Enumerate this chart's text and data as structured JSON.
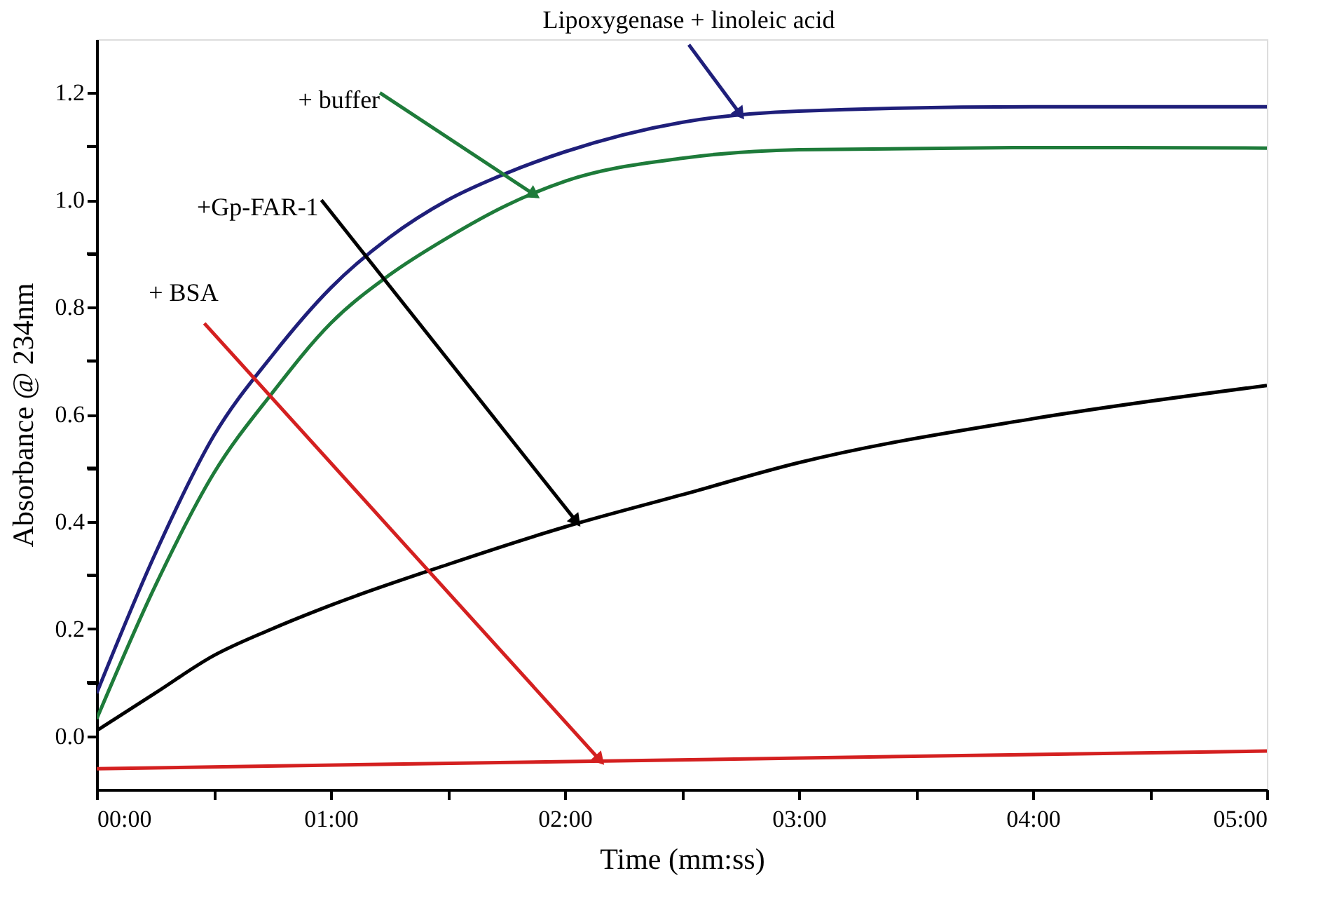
{
  "chart_data": {
    "type": "line",
    "xlabel": "Time (mm:ss)",
    "ylabel": "Absorbance @ 234nm",
    "series": [
      {
        "color": "#1f1f7a",
        "x": [
          0,
          0.25,
          0.5,
          0.75,
          1,
          1.25,
          1.5,
          1.75,
          2,
          2.5,
          3,
          4,
          5
        ],
        "values": [
          0.08,
          0.34,
          0.56,
          0.71,
          0.836,
          0.93,
          1.0,
          1.05,
          1.09,
          1.145,
          1.166,
          1.174,
          1.174
        ]
      },
      {
        "color": "#1e7b3a",
        "x": [
          0,
          0.25,
          0.5,
          0.75,
          1,
          1.25,
          1.5,
          1.75,
          2,
          2.5,
          3,
          4,
          5
        ],
        "values": [
          0.032,
          0.28,
          0.49,
          0.64,
          0.77,
          0.86,
          0.93,
          0.99,
          1.035,
          1.078,
          1.094,
          1.098,
          1.097
        ]
      },
      {
        "color": "#000000",
        "x": [
          0,
          0.25,
          0.5,
          0.75,
          1,
          1.5,
          2,
          2.5,
          3,
          4,
          5
        ],
        "values": [
          0.01,
          0.08,
          0.15,
          0.2,
          0.244,
          0.32,
          0.39,
          0.45,
          0.51,
          0.592,
          0.654
        ]
      },
      {
        "color": "#d42020",
        "x": [
          0,
          5
        ],
        "values": [
          -0.061,
          -0.028
        ]
      }
    ],
    "annotations": [
      {
        "text": "Lipoxygenase + linoleic acid",
        "x": 2.75,
        "y": 1.16
      },
      {
        "text": "+ buffer",
        "x": 1.87,
        "y": 1.01
      },
      {
        "text": "+Gp-FAR-1",
        "x": 2.05,
        "y": 0.4
      },
      {
        "text": "+ BSA",
        "x": 2.15,
        "y": -0.045
      }
    ],
    "xlim": [
      0,
      5
    ],
    "xticks": [
      {
        "value": 0,
        "label": "00:00"
      },
      {
        "value": 0.5,
        "label": null
      },
      {
        "value": 1,
        "label": "01:00"
      },
      {
        "value": 1.5,
        "label": null
      },
      {
        "value": 2,
        "label": "02:00"
      },
      {
        "value": 2.5,
        "label": null
      },
      {
        "value": 3,
        "label": "03:00"
      },
      {
        "value": 3.5,
        "label": null
      },
      {
        "value": 4,
        "label": "04:00"
      },
      {
        "value": 4.5,
        "label": null
      },
      {
        "value": 5,
        "label": "05:00"
      }
    ],
    "ylim": [
      -0.1,
      1.3
    ],
    "yticks": [
      {
        "value": 0,
        "label": "0.0"
      },
      {
        "value": 0.1,
        "label": null
      },
      {
        "value": 0.2,
        "label": "0.2"
      },
      {
        "value": 0.3,
        "label": null
      },
      {
        "value": 0.4,
        "label": "0.4"
      },
      {
        "value": 0.5,
        "label": null
      },
      {
        "value": 0.6,
        "label": "0.6"
      },
      {
        "value": 0.7,
        "label": null
      },
      {
        "value": 0.8,
        "label": "0.8"
      },
      {
        "value": 0.9,
        "label": null
      },
      {
        "value": 1.0,
        "label": "1.0"
      },
      {
        "value": 1.1,
        "label": null
      },
      {
        "value": 1.2,
        "label": "1.2"
      }
    ],
    "grid": false,
    "marker": "none",
    "line_style": "solid"
  }
}
